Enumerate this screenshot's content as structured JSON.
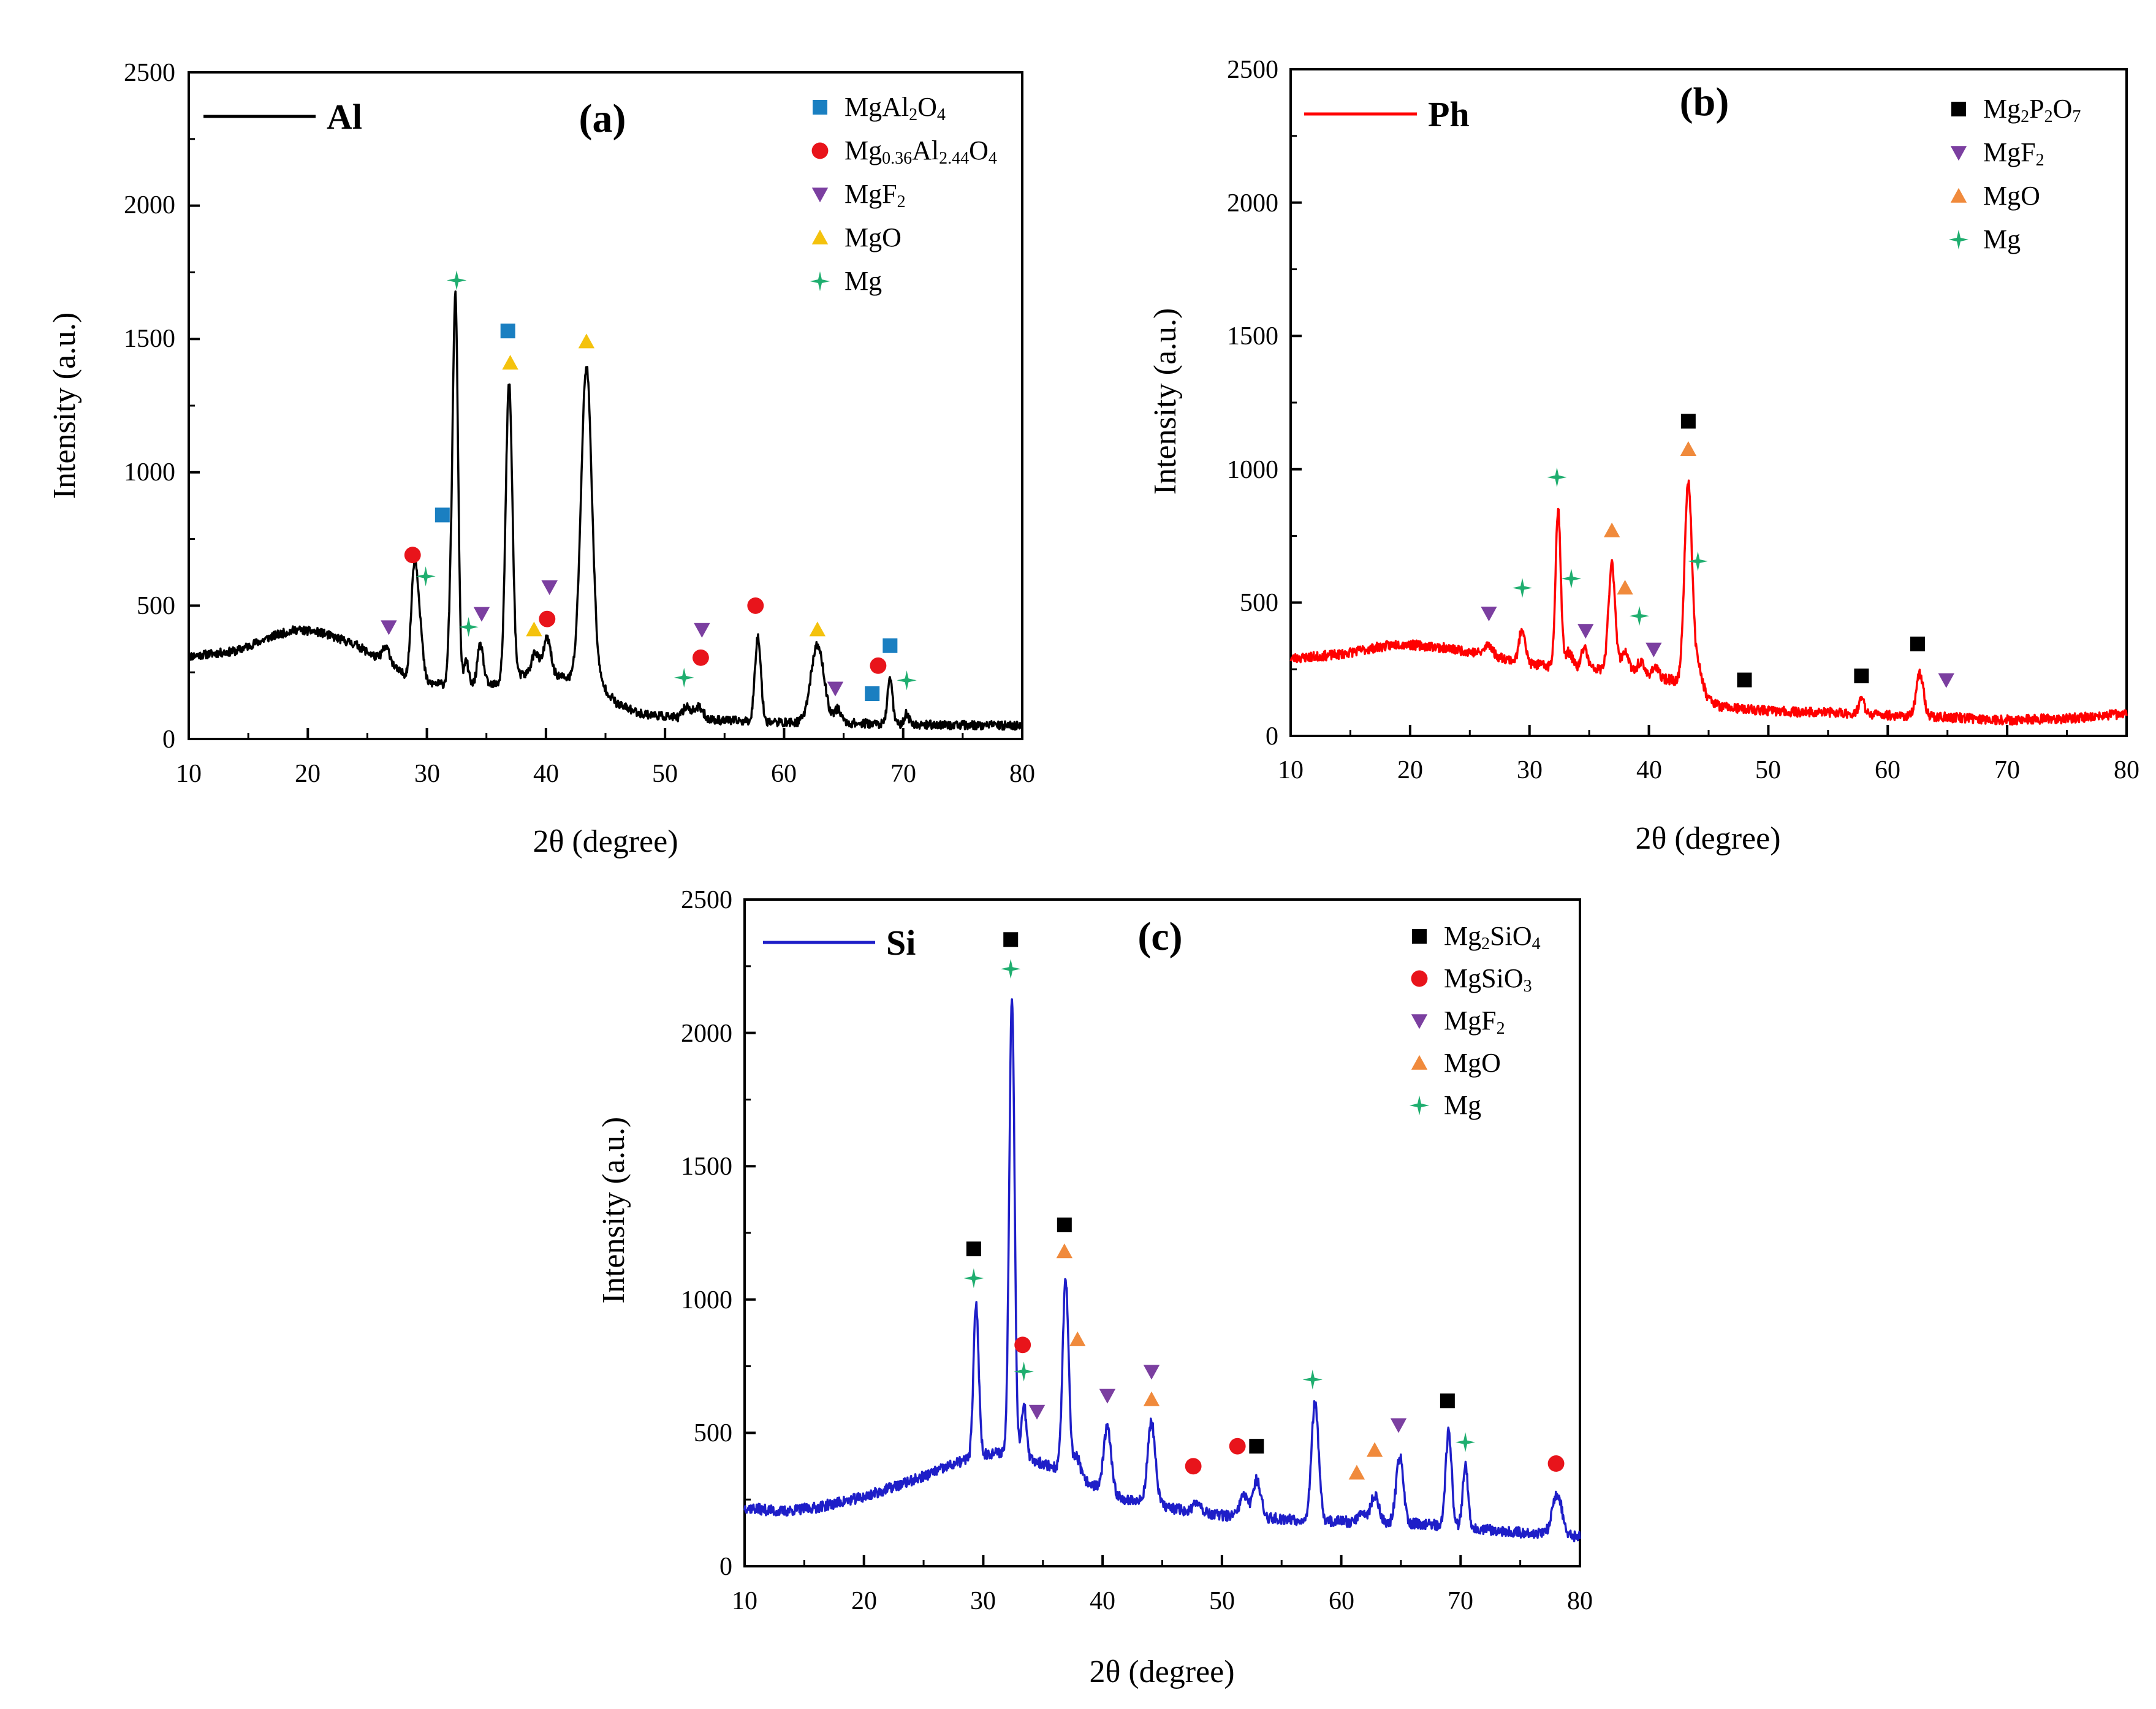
{
  "colors": {
    "square_blue": "#1a7fc1",
    "square_black": "#000000",
    "circle": "#e8141b",
    "triangle_down": "#7b3fa0",
    "triangle_up_yellow": "#f4c20d",
    "triangle_up_orange": "#f08a3c",
    "star": "#1fae6f",
    "line_a": "#000000",
    "line_b": "#ff0000",
    "line_c": "#1e1ec8"
  },
  "chart_data": [
    {
      "type": "line",
      "panel": "(a)",
      "title": "(a)",
      "sample": "Al",
      "line_color": "#000000",
      "xlabel": "2θ (degree)",
      "ylabel": "Intensity (a.u.)",
      "xlim": [
        10,
        80
      ],
      "ylim": [
        0,
        2500
      ],
      "xticks": [
        "10",
        "20",
        "30",
        "40",
        "50",
        "60",
        "70",
        "80"
      ],
      "yticks": [
        "0",
        "500",
        "1000",
        "1500",
        "2000",
        "2500"
      ],
      "baseline": [
        [
          10,
          310
        ],
        [
          14,
          330
        ],
        [
          17,
          385
        ],
        [
          19,
          410
        ],
        [
          21,
          400
        ],
        [
          24,
          355
        ],
        [
          27,
          270
        ],
        [
          28,
          245
        ],
        [
          30,
          210
        ],
        [
          33,
          200
        ],
        [
          36,
          205
        ],
        [
          38,
          240
        ],
        [
          40,
          250
        ],
        [
          42,
          225
        ],
        [
          44,
          240
        ],
        [
          46,
          130
        ],
        [
          48,
          95
        ],
        [
          52,
          75
        ],
        [
          55,
          70
        ],
        [
          58,
          65
        ],
        [
          60,
          62
        ],
        [
          65,
          60
        ],
        [
          70,
          55
        ],
        [
          75,
          52
        ],
        [
          80,
          50
        ]
      ],
      "peaks": [
        [
          26.6,
          60,
          0.35
        ],
        [
          28.9,
          330,
          0.25
        ],
        [
          29.3,
          240,
          0.3
        ],
        [
          32.0,
          250,
          0.2
        ],
        [
          32.4,
          1430,
          0.22
        ],
        [
          33.3,
          90,
          0.2
        ],
        [
          34.5,
          150,
          0.25
        ],
        [
          36.9,
          1110,
          0.28
        ],
        [
          39.1,
          80,
          0.3
        ],
        [
          40.1,
          130,
          0.3
        ],
        [
          43.4,
          1160,
          0.45
        ],
        [
          51.8,
          45,
          0.3
        ],
        [
          52.8,
          45,
          0.4
        ],
        [
          57.8,
          320,
          0.25
        ],
        [
          62.8,
          290,
          0.55
        ],
        [
          64.5,
          50,
          0.3
        ],
        [
          68.9,
          180,
          0.2
        ],
        [
          70.3,
          40,
          0.2
        ]
      ],
      "noise": 16,
      "seed": 11,
      "legend": [
        {
          "marker": "square",
          "color": "#1a7fc1",
          "label": "MgAl",
          "sub1": "2",
          "mid1": "O",
          "sub2": "4",
          "mid2": ""
        },
        {
          "marker": "circle",
          "color": "#e8141b",
          "label": "Mg",
          "sub1": "0.36",
          "mid1": "Al",
          "sub2": "2.44",
          "mid2": "O",
          "sub3": "4"
        },
        {
          "marker": "tri-down",
          "color": "#7b3fa0",
          "label": "MgF",
          "sub1": "2"
        },
        {
          "marker": "tri-up",
          "color": "#f4c20d",
          "label": "MgO"
        },
        {
          "marker": "star",
          "color": "#1fae6f",
          "label": "Mg"
        }
      ],
      "markers": [
        {
          "shape": "square",
          "color": "#1a7fc1",
          "x": 31.3,
          "y": 840
        },
        {
          "shape": "square",
          "color": "#1a7fc1",
          "x": 36.8,
          "y": 1530
        },
        {
          "shape": "square",
          "color": "#1a7fc1",
          "x": 67.4,
          "y": 170
        },
        {
          "shape": "square",
          "color": "#1a7fc1",
          "x": 68.9,
          "y": 350
        },
        {
          "shape": "circle",
          "color": "#e8141b",
          "x": 28.8,
          "y": 690
        },
        {
          "shape": "circle",
          "color": "#e8141b",
          "x": 40.1,
          "y": 450
        },
        {
          "shape": "circle",
          "color": "#e8141b",
          "x": 53.0,
          "y": 305
        },
        {
          "shape": "circle",
          "color": "#e8141b",
          "x": 57.6,
          "y": 500
        },
        {
          "shape": "circle",
          "color": "#e8141b",
          "x": 67.9,
          "y": 275
        },
        {
          "shape": "tri-down",
          "color": "#7b3fa0",
          "x": 26.8,
          "y": 420
        },
        {
          "shape": "tri-down",
          "color": "#7b3fa0",
          "x": 34.6,
          "y": 470
        },
        {
          "shape": "tri-down",
          "color": "#7b3fa0",
          "x": 40.3,
          "y": 570
        },
        {
          "shape": "tri-down",
          "color": "#7b3fa0",
          "x": 53.1,
          "y": 410
        },
        {
          "shape": "tri-down",
          "color": "#7b3fa0",
          "x": 64.3,
          "y": 190
        },
        {
          "shape": "tri-up",
          "color": "#f4c20d",
          "x": 37.0,
          "y": 1410
        },
        {
          "shape": "tri-up",
          "color": "#f4c20d",
          "x": 43.4,
          "y": 1490
        },
        {
          "shape": "tri-up",
          "color": "#f4c20d",
          "x": 39.0,
          "y": 410
        },
        {
          "shape": "tri-up",
          "color": "#f4c20d",
          "x": 62.8,
          "y": 410
        },
        {
          "shape": "star",
          "color": "#1fae6f",
          "x": 32.5,
          "y": 1720
        },
        {
          "shape": "star",
          "color": "#1fae6f",
          "x": 29.9,
          "y": 610
        },
        {
          "shape": "star",
          "color": "#1fae6f",
          "x": 33.5,
          "y": 420
        },
        {
          "shape": "star",
          "color": "#1fae6f",
          "x": 51.6,
          "y": 230
        },
        {
          "shape": "star",
          "color": "#1fae6f",
          "x": 70.3,
          "y": 220
        }
      ]
    },
    {
      "type": "line",
      "panel": "(b)",
      "title": "(b)",
      "sample": "Ph",
      "line_color": "#ff0000",
      "xlabel": "2θ (degree)",
      "ylabel": "Intensity (a.u.)",
      "xlim": [
        10,
        80
      ],
      "ylim": [
        0,
        2500
      ],
      "xticks": [
        "10",
        "20",
        "30",
        "40",
        "50",
        "60",
        "70",
        "80"
      ],
      "yticks": [
        "0",
        "500",
        "1000",
        "1500",
        "2000",
        "2500"
      ],
      "baseline": [
        [
          10,
          290
        ],
        [
          14,
          305
        ],
        [
          17,
          330
        ],
        [
          19,
          345
        ],
        [
          22,
          335
        ],
        [
          26,
          310
        ],
        [
          28,
          290
        ],
        [
          30,
          270
        ],
        [
          33,
          255
        ],
        [
          36,
          250
        ],
        [
          38,
          240
        ],
        [
          40,
          220
        ],
        [
          42,
          210
        ],
        [
          44,
          170
        ],
        [
          46,
          110
        ],
        [
          48,
          100
        ],
        [
          52,
          90
        ],
        [
          55,
          88
        ],
        [
          58,
          82
        ],
        [
          60,
          78
        ],
        [
          65,
          70
        ],
        [
          70,
          60
        ],
        [
          75,
          65
        ],
        [
          78,
          75
        ],
        [
          80,
          85
        ]
      ],
      "peaks": [
        [
          26.6,
          40,
          0.3
        ],
        [
          29.4,
          130,
          0.25
        ],
        [
          32.4,
          590,
          0.22
        ],
        [
          33.3,
          60,
          0.3
        ],
        [
          34.6,
          80,
          0.25
        ],
        [
          36.9,
          400,
          0.28
        ],
        [
          38.0,
          80,
          0.3
        ],
        [
          39.3,
          50,
          0.3
        ],
        [
          40.5,
          40,
          0.3
        ],
        [
          43.3,
          770,
          0.32
        ],
        [
          44.2,
          90,
          0.3
        ],
        [
          57.8,
          60,
          0.22
        ],
        [
          62.7,
          160,
          0.3
        ]
      ],
      "noise": 18,
      "seed": 23,
      "legend": [
        {
          "marker": "square",
          "color": "#000000",
          "label": "Mg",
          "sub1": "2",
          "mid1": "P",
          "sub2": "2",
          "mid2": "O",
          "sub3": "7"
        },
        {
          "marker": "tri-down",
          "color": "#7b3fa0",
          "label": "MgF",
          "sub1": "2"
        },
        {
          "marker": "tri-up",
          "color": "#f08a3c",
          "label": "MgO"
        },
        {
          "marker": "star",
          "color": "#1fae6f",
          "label": "Mg"
        }
      ],
      "markers": [
        {
          "shape": "square",
          "color": "#000000",
          "x": 43.3,
          "y": 1180
        },
        {
          "shape": "square",
          "color": "#000000",
          "x": 48.0,
          "y": 210
        },
        {
          "shape": "square",
          "color": "#000000",
          "x": 57.8,
          "y": 225
        },
        {
          "shape": "square",
          "color": "#000000",
          "x": 62.5,
          "y": 345
        },
        {
          "shape": "tri-down",
          "color": "#7b3fa0",
          "x": 26.6,
          "y": 460
        },
        {
          "shape": "tri-down",
          "color": "#7b3fa0",
          "x": 34.7,
          "y": 395
        },
        {
          "shape": "tri-down",
          "color": "#7b3fa0",
          "x": 40.4,
          "y": 325
        },
        {
          "shape": "tri-down",
          "color": "#7b3fa0",
          "x": 64.9,
          "y": 210
        },
        {
          "shape": "tri-up",
          "color": "#f08a3c",
          "x": 43.3,
          "y": 1075
        },
        {
          "shape": "tri-up",
          "color": "#f08a3c",
          "x": 36.9,
          "y": 770
        },
        {
          "shape": "tri-up",
          "color": "#f08a3c",
          "x": 38.0,
          "y": 555
        },
        {
          "shape": "star",
          "color": "#1fae6f",
          "x": 32.3,
          "y": 970
        },
        {
          "shape": "star",
          "color": "#1fae6f",
          "x": 29.4,
          "y": 555
        },
        {
          "shape": "star",
          "color": "#1fae6f",
          "x": 33.5,
          "y": 590
        },
        {
          "shape": "star",
          "color": "#1fae6f",
          "x": 39.2,
          "y": 450
        },
        {
          "shape": "star",
          "color": "#1fae6f",
          "x": 44.1,
          "y": 655
        }
      ]
    },
    {
      "type": "line",
      "panel": "(c)",
      "title": "(c)",
      "sample": "Si",
      "line_color": "#1e1ec8",
      "xlabel": "2θ (degree)",
      "ylabel": "Intensity (a.u.)",
      "xlim": [
        10,
        80
      ],
      "ylim": [
        0,
        2500
      ],
      "xticks": [
        "10",
        "20",
        "30",
        "40",
        "50",
        "60",
        "70",
        "80"
      ],
      "yticks": [
        "0",
        "500",
        "1000",
        "1500",
        "2000",
        "2500"
      ],
      "baseline": [
        [
          10,
          220
        ],
        [
          13,
          205
        ],
        [
          16,
          220
        ],
        [
          20,
          260
        ],
        [
          24,
          320
        ],
        [
          28,
          390
        ],
        [
          30,
          420
        ],
        [
          32,
          430
        ],
        [
          34,
          400
        ],
        [
          36,
          370
        ],
        [
          38,
          330
        ],
        [
          40,
          290
        ],
        [
          42,
          250
        ],
        [
          44,
          240
        ],
        [
          46,
          215
        ],
        [
          50,
          190
        ],
        [
          54,
          180
        ],
        [
          58,
          170
        ],
        [
          62,
          165
        ],
        [
          66,
          160
        ],
        [
          70,
          150
        ],
        [
          74,
          130
        ],
        [
          78,
          120
        ],
        [
          80,
          110
        ]
      ],
      "peaks": [
        [
          29.4,
          570,
          0.22
        ],
        [
          32.4,
          1720,
          0.22
        ],
        [
          33.4,
          200,
          0.2
        ],
        [
          36.9,
          720,
          0.25
        ],
        [
          37.8,
          80,
          0.3
        ],
        [
          40.4,
          240,
          0.3
        ],
        [
          44.1,
          300,
          0.32
        ],
        [
          48.0,
          40,
          0.3
        ],
        [
          51.8,
          80,
          0.3
        ],
        [
          52.9,
          140,
          0.35
        ],
        [
          57.8,
          440,
          0.3
        ],
        [
          61.7,
          40,
          0.3
        ],
        [
          62.8,
          100,
          0.35
        ],
        [
          64.9,
          250,
          0.3
        ],
        [
          69.0,
          350,
          0.25
        ],
        [
          70.4,
          230,
          0.22
        ],
        [
          78.1,
          150,
          0.4
        ]
      ],
      "noise": 20,
      "seed": 37,
      "legend": [
        {
          "marker": "square",
          "color": "#000000",
          "label": "Mg",
          "sub1": "2",
          "mid1": "SiO",
          "sub2": "4"
        },
        {
          "marker": "circle",
          "color": "#e8141b",
          "label": "MgSiO",
          "sub1": "3"
        },
        {
          "marker": "tri-down",
          "color": "#7b3fa0",
          "label": "MgF",
          "sub1": "2"
        },
        {
          "marker": "tri-up",
          "color": "#f08a3c",
          "label": "MgO"
        },
        {
          "marker": "star",
          "color": "#1fae6f",
          "label": "Mg"
        }
      ],
      "markers": [
        {
          "shape": "square",
          "color": "#000000",
          "x": 32.3,
          "y": 2350
        },
        {
          "shape": "square",
          "color": "#000000",
          "x": 29.2,
          "y": 1190
        },
        {
          "shape": "square",
          "color": "#000000",
          "x": 36.8,
          "y": 1280
        },
        {
          "shape": "square",
          "color": "#000000",
          "x": 52.9,
          "y": 450
        },
        {
          "shape": "square",
          "color": "#000000",
          "x": 68.9,
          "y": 620
        },
        {
          "shape": "circle",
          "color": "#e8141b",
          "x": 33.3,
          "y": 830
        },
        {
          "shape": "circle",
          "color": "#e8141b",
          "x": 47.6,
          "y": 375
        },
        {
          "shape": "circle",
          "color": "#e8141b",
          "x": 51.3,
          "y": 450
        },
        {
          "shape": "circle",
          "color": "#e8141b",
          "x": 78.0,
          "y": 385
        },
        {
          "shape": "tri-down",
          "color": "#7b3fa0",
          "x": 34.5,
          "y": 580
        },
        {
          "shape": "tri-down",
          "color": "#7b3fa0",
          "x": 40.4,
          "y": 640
        },
        {
          "shape": "tri-down",
          "color": "#7b3fa0",
          "x": 44.1,
          "y": 730
        },
        {
          "shape": "tri-down",
          "color": "#7b3fa0",
          "x": 64.8,
          "y": 530
        },
        {
          "shape": "tri-up",
          "color": "#f08a3c",
          "x": 36.8,
          "y": 1180
        },
        {
          "shape": "tri-up",
          "color": "#f08a3c",
          "x": 37.9,
          "y": 850
        },
        {
          "shape": "tri-up",
          "color": "#f08a3c",
          "x": 44.1,
          "y": 625
        },
        {
          "shape": "tri-up",
          "color": "#f08a3c",
          "x": 61.3,
          "y": 350
        },
        {
          "shape": "tri-up",
          "color": "#f08a3c",
          "x": 62.8,
          "y": 435
        },
        {
          "shape": "star",
          "color": "#1fae6f",
          "x": 32.3,
          "y": 2240
        },
        {
          "shape": "star",
          "color": "#1fae6f",
          "x": 29.2,
          "y": 1080
        },
        {
          "shape": "star",
          "color": "#1fae6f",
          "x": 33.4,
          "y": 730
        },
        {
          "shape": "star",
          "color": "#1fae6f",
          "x": 57.6,
          "y": 700
        },
        {
          "shape": "star",
          "color": "#1fae6f",
          "x": 70.4,
          "y": 465
        }
      ]
    }
  ]
}
